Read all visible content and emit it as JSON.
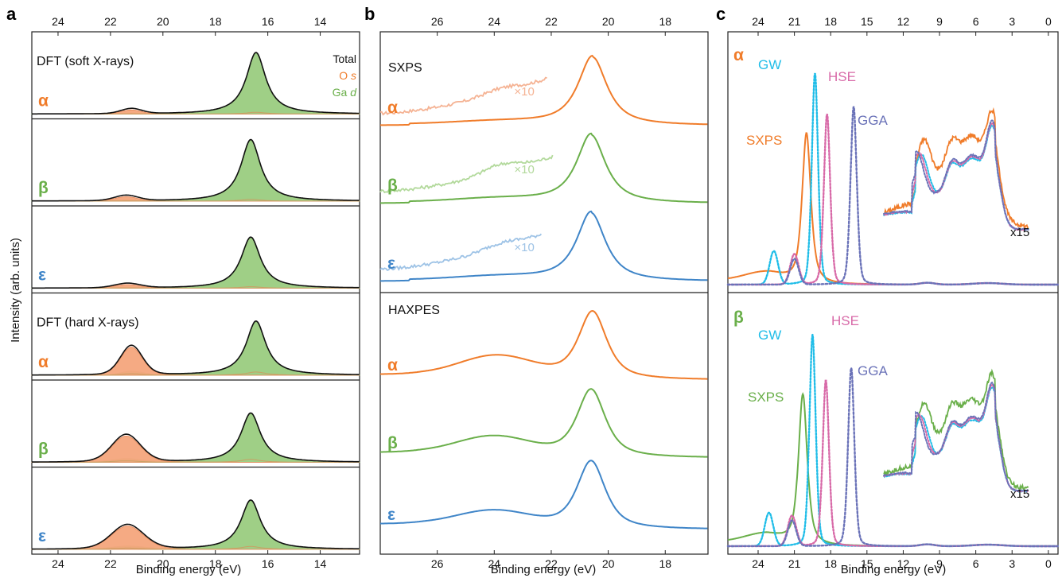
{
  "figure": {
    "panel_letters": [
      "a",
      "b",
      "c"
    ],
    "shared_ylabel": "Intensity (arb. units)",
    "xlabel": "Binding energy (eV)",
    "colors": {
      "alpha": "#f07c2a",
      "beta": "#6aaf4a",
      "epsilon": "#3f85c8",
      "alpha_light": "#f5b394",
      "beta_light": "#b2d99b",
      "epsilon_light": "#9ec3e6",
      "O_s_fill": "#f4a57c",
      "Ga_d_fill": "#9fcf86",
      "GW": "#1fbde8",
      "HSE": "#d86aa8",
      "GGA": "#6a72b8"
    }
  },
  "chart_data": [
    {
      "type": "area",
      "panel": "a",
      "xlabel": "Binding energy (eV)",
      "xlim": [
        25,
        12.5
      ],
      "x_reversed": true,
      "xticks": [
        24,
        22,
        20,
        18,
        16,
        14
      ],
      "xticks_top": [
        24,
        22,
        20,
        18,
        16,
        14
      ],
      "legend": [
        "Total",
        "O s",
        "Ga d"
      ],
      "legend_parts": [
        [
          "Total",
          ""
        ],
        [
          "O ",
          "s"
        ],
        [
          "Ga ",
          "d"
        ]
      ],
      "section_titles": [
        "DFT (soft X-rays)",
        "DFT (hard X-rays)"
      ],
      "phase_labels": [
        "α",
        "β",
        "ε"
      ],
      "stacks": [
        {
          "section": "soft",
          "phase": "α",
          "peaks": [
            {
              "center": 16.45,
              "height": 1.0,
              "width": 0.45
            },
            {
              "center": 21.2,
              "height": 0.085,
              "width": 0.4
            }
          ],
          "o_s_fraction_shallow": 0.03,
          "o_s_fraction_deep": 0.8
        },
        {
          "section": "soft",
          "phase": "β",
          "peaks": [
            {
              "center": 16.65,
              "height": 1.0,
              "width": 0.45
            },
            {
              "center": 21.4,
              "height": 0.09,
              "width": 0.45
            }
          ],
          "o_s_fraction_shallow": 0.03,
          "o_s_fraction_deep": 0.8
        },
        {
          "section": "soft",
          "phase": "ε",
          "peaks": [
            {
              "center": 16.65,
              "height": 0.83,
              "width": 0.45
            },
            {
              "center": 21.35,
              "height": 0.075,
              "width": 0.5
            }
          ],
          "o_s_fraction_shallow": 0.03,
          "o_s_fraction_deep": 0.8
        },
        {
          "section": "hard",
          "phase": "α",
          "peaks": [
            {
              "center": 16.45,
              "height": 0.88,
              "width": 0.45
            },
            {
              "center": 21.2,
              "height": 0.48,
              "width": 0.42
            }
          ],
          "o_s_fraction_shallow": 0.06,
          "o_s_fraction_deep": 0.95
        },
        {
          "section": "hard",
          "phase": "β",
          "peaks": [
            {
              "center": 16.65,
              "height": 0.8,
              "width": 0.45
            },
            {
              "center": 21.4,
              "height": 0.45,
              "width": 0.55
            }
          ],
          "o_s_fraction_shallow": 0.06,
          "o_s_fraction_deep": 0.95
        },
        {
          "section": "hard",
          "phase": "ε",
          "peaks": [
            {
              "center": 16.65,
              "height": 0.8,
              "width": 0.45
            },
            {
              "center": 21.35,
              "height": 0.4,
              "width": 0.62
            }
          ],
          "o_s_fraction_shallow": 0.06,
          "o_s_fraction_deep": 0.95
        }
      ]
    },
    {
      "type": "line",
      "panel": "b",
      "xlabel": "Binding energy (eV)",
      "xlim": [
        28,
        16.5
      ],
      "x_reversed": true,
      "xticks": [
        26,
        24,
        22,
        20,
        18
      ],
      "xticks_top": [
        26,
        24,
        22,
        20,
        18
      ],
      "section_titles": [
        "SXPS",
        "HAXPES"
      ],
      "phase_labels": [
        "α",
        "β",
        "ε"
      ],
      "magnification_label": "×10",
      "sxps": [
        {
          "phase": "α",
          "peak_center": 20.55,
          "peak_height": 1.0,
          "shoulder_height": 0.04,
          "zoom_range": [
            28,
            22.1
          ]
        },
        {
          "phase": "β",
          "peak_center": 20.6,
          "peak_height": 1.0,
          "shoulder_height": 0.05,
          "zoom_range": [
            28,
            21.9
          ]
        },
        {
          "phase": "ε",
          "peak_center": 20.6,
          "peak_height": 1.0,
          "shoulder_height": 0.05,
          "zoom_range": [
            28,
            22.3
          ]
        }
      ],
      "haxpes": [
        {
          "phase": "α",
          "peak_center": 20.55,
          "peak_height": 1.0,
          "shoulder_center": 23.9,
          "shoulder_height": 0.3
        },
        {
          "phase": "β",
          "peak_center": 20.6,
          "peak_height": 1.0,
          "shoulder_center": 24.0,
          "shoulder_height": 0.26
        },
        {
          "phase": "ε",
          "peak_center": 20.6,
          "peak_height": 1.0,
          "shoulder_center": 24.0,
          "shoulder_height": 0.22
        }
      ]
    },
    {
      "type": "line",
      "panel": "c",
      "xlabel": "Binding energy (eV)",
      "xlim": [
        26.5,
        -0.8
      ],
      "x_reversed": true,
      "xticks": [
        24,
        21,
        18,
        15,
        12,
        9,
        6,
        3,
        0
      ],
      "xticks_top": [
        24,
        21,
        18,
        15,
        12,
        9,
        6,
        3,
        0
      ],
      "magnification_label": "x15",
      "subpanels": [
        {
          "phase": "α",
          "series": [
            {
              "name": "SXPS",
              "peak_center": 20.0,
              "peak_height": 1.0,
              "secondary_center": 23.5,
              "secondary_height": 0.05
            },
            {
              "name": "GW",
              "peak_center": 19.3,
              "peak_height": 1.4,
              "secondary_center": 22.7,
              "secondary_height": 0.22
            },
            {
              "name": "HSE",
              "peak_center": 18.3,
              "peak_height": 1.13,
              "secondary_center": 21.0,
              "secondary_height": 0.2
            },
            {
              "name": "GGA",
              "peak_center": 16.1,
              "peak_height": 1.18,
              "secondary_center": 21.0,
              "secondary_height": 0.17
            }
          ],
          "valence_band_x15": {
            "x_range": [
              13.6,
              1.6
            ],
            "sxps_shift": 0.32
          }
        },
        {
          "phase": "β",
          "series": [
            {
              "name": "SXPS",
              "peak_center": 20.3,
              "peak_height": 1.0,
              "secondary_center": 23.5,
              "secondary_height": 0.05
            },
            {
              "name": "GW",
              "peak_center": 19.5,
              "peak_height": 1.4,
              "secondary_center": 23.1,
              "secondary_height": 0.22
            },
            {
              "name": "HSE",
              "peak_center": 18.4,
              "peak_height": 1.1,
              "secondary_center": 21.2,
              "secondary_height": 0.2
            },
            {
              "name": "GGA",
              "peak_center": 16.3,
              "peak_height": 1.18,
              "secondary_center": 21.2,
              "secondary_height": 0.17
            }
          ],
          "valence_band_x15": {
            "x_range": [
              13.6,
              1.6
            ],
            "sxps_shift": 0.28
          }
        }
      ]
    }
  ]
}
